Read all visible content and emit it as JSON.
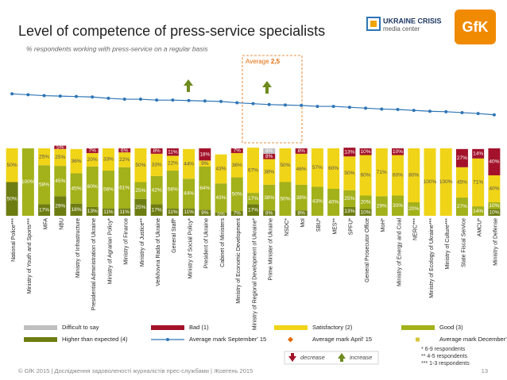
{
  "chart_data": {
    "type": "stacked-bar",
    "title": "Level of competence of press-service specialists",
    "subtitle": "% respondents working with press-service on a regular basis",
    "average_label": "Average",
    "average_value": "2,5",
    "logo_text": [
      "UKRAINE CRISIS",
      "media center"
    ],
    "brand": "GfK",
    "categories": [
      "National Police***",
      "Ministry of Youth and Sports***",
      "MFA",
      "NBU",
      "Ministry of Infrastructure",
      "Presidential Administration of Ukraine",
      "Ministry of Agrarian Policy*",
      "Ministry of Finance",
      "Ministry of Justice**",
      "Verkhovna Rada of Ukraine",
      "General Staff*",
      "Ministry of Social Policy*",
      "President of Ukraine",
      "Cabinet of Ministers",
      "Ministry of Economic Development",
      "Ministry of Regional Development of Ukraine*",
      "Prime Minister of Ukraine",
      "NSDC*",
      "MoI",
      "SBU*",
      "MES**",
      "SPFU*",
      "General Prosecutor Office",
      "MoH*",
      "Ministry of Energy and Coal",
      "NERC***",
      "Ministry of Ecology of Ukraine***",
      "Ministry of Culture***",
      "State Fiscal Service",
      "AMCU*",
      "Ministry of Defense"
    ],
    "ylim": [
      0,
      100
    ],
    "series": [
      {
        "name": "Higher than expected (4)",
        "color": "#6e7d12",
        "values": [
          50,
          null,
          17,
          29,
          18,
          13,
          11,
          11,
          25,
          17,
          11,
          11,
          9,
          5,
          7,
          17,
          8,
          null,
          8,
          null,
          null,
          13,
          10,
          null,
          null,
          null,
          null,
          null,
          null,
          null,
          10
        ],
        "value_labels": [
          "50%",
          null,
          "17%",
          "29%",
          "18%",
          "13%",
          "11%",
          "11%",
          "25%",
          "17%",
          "11%",
          "11%",
          "9%",
          "5%",
          "7%",
          "17%",
          "8%",
          null,
          "8%",
          null,
          null,
          "13%",
          "10%",
          null,
          null,
          null,
          null,
          null,
          null,
          null,
          "10%"
        ]
      },
      {
        "name": "Good (3)",
        "color": "#a3b11a",
        "values": [
          null,
          100,
          58,
          45,
          45,
          60,
          56,
          61,
          25,
          42,
          56,
          44,
          64,
          43,
          50,
          17,
          38,
          50,
          38,
          43,
          40,
          25,
          20,
          29,
          30,
          20,
          null,
          null,
          27,
          14,
          10
        ],
        "value_labels": [
          null,
          "100%",
          "58%",
          "45%",
          "45%",
          "60%",
          "56%",
          "61%",
          "25%",
          "42%",
          "56%",
          "44%",
          "64%",
          "43%",
          "50%",
          "17%",
          "38%",
          "50%",
          "38%",
          "43%",
          "40%",
          "25%",
          "20%",
          "29%",
          "30%",
          "20%",
          null,
          null,
          "27%",
          "14%",
          "10%"
        ]
      },
      {
        "name": "Satisfactory (2)",
        "color": "#f0d417",
        "values": [
          50,
          null,
          25,
          25,
          36,
          20,
          33,
          22,
          50,
          33,
          22,
          44,
          9,
          43,
          36,
          67,
          38,
          50,
          46,
          57,
          60,
          50,
          60,
          71,
          60,
          80,
          100,
          100,
          45,
          71,
          40
        ],
        "value_labels": [
          "50%",
          null,
          "25%",
          "25%",
          "36%",
          "20%",
          "33%",
          "22%",
          "50%",
          "33%",
          "22%",
          "44%",
          "9%",
          "43%",
          "36%",
          "67%",
          "38%",
          "50%",
          "46%",
          "57%",
          "60%",
          "50%",
          "60%",
          "71%",
          "60%",
          "80%",
          "100%",
          "100%",
          "45%",
          "71%",
          "40%"
        ]
      },
      {
        "name": "Bad (1)",
        "color": "#a3122a",
        "values": [
          null,
          null,
          null,
          5,
          null,
          7,
          null,
          6,
          null,
          8,
          11,
          null,
          18,
          null,
          7,
          null,
          8,
          null,
          8,
          null,
          null,
          13,
          10,
          null,
          10,
          null,
          null,
          null,
          27,
          14,
          40
        ],
        "value_labels": [
          null,
          null,
          null,
          "5%",
          null,
          "7%",
          null,
          "6%",
          null,
          "8%",
          "11%",
          null,
          "18%",
          null,
          "7%",
          null,
          "8%",
          null,
          "8%",
          null,
          null,
          "13%",
          "10%",
          null,
          "10%",
          null,
          null,
          null,
          "27%",
          "14%",
          "40%"
        ]
      },
      {
        "name": "Difficult to say",
        "color": "#bfbfbf",
        "values": [
          null,
          null,
          null,
          null,
          null,
          null,
          null,
          null,
          null,
          null,
          null,
          null,
          null,
          null,
          null,
          null,
          8,
          null,
          null,
          null,
          null,
          null,
          null,
          null,
          null,
          null,
          null,
          null,
          null,
          null,
          null
        ],
        "value_labels": [
          null,
          null,
          null,
          null,
          null,
          null,
          null,
          null,
          null,
          null,
          null,
          null,
          null,
          null,
          null,
          null,
          "8%",
          null,
          null,
          null,
          null,
          null,
          null,
          null,
          null,
          null,
          null,
          null,
          null,
          null,
          null
        ]
      }
    ],
    "line": {
      "name": "Average mark September' 15",
      "color": "#2e75b6",
      "values": [
        2.72,
        2.7,
        2.68,
        2.67,
        2.66,
        2.65,
        2.62,
        2.6,
        2.6,
        2.58,
        2.58,
        2.57,
        2.56,
        2.55,
        2.52,
        2.5,
        2.48,
        2.47,
        2.46,
        2.44,
        2.44,
        2.42,
        2.4,
        2.38,
        2.37,
        2.35,
        2.33,
        2.32,
        2.3,
        2.28,
        2.25
      ],
      "y2lim": [
        1.5,
        3.4
      ]
    },
    "other_legend": [
      {
        "name": "Average mark April' 15",
        "color": "#e46c0a",
        "marker": "diamond"
      },
      {
        "name": "Average mark December' 14",
        "color": "#d6c43a",
        "marker": "square"
      }
    ],
    "legend_order": [
      "Difficult to say",
      "Bad (1)",
      "Satisfactory (2)",
      "Good (3)",
      "Higher than expected (4)",
      "Average mark September' 15",
      "Average mark April' 15",
      "Average mark December' 14"
    ],
    "decrease": "decrease",
    "increase": "increase",
    "notes": [
      "* 6-9 respondents",
      "** 4-5 respondents",
      "*** 1-3 respondents"
    ],
    "footer": "© GfK 2015 | Дослідження задоволеності журналістів прес-службами | Жовтень 2015",
    "page_number": "13"
  }
}
